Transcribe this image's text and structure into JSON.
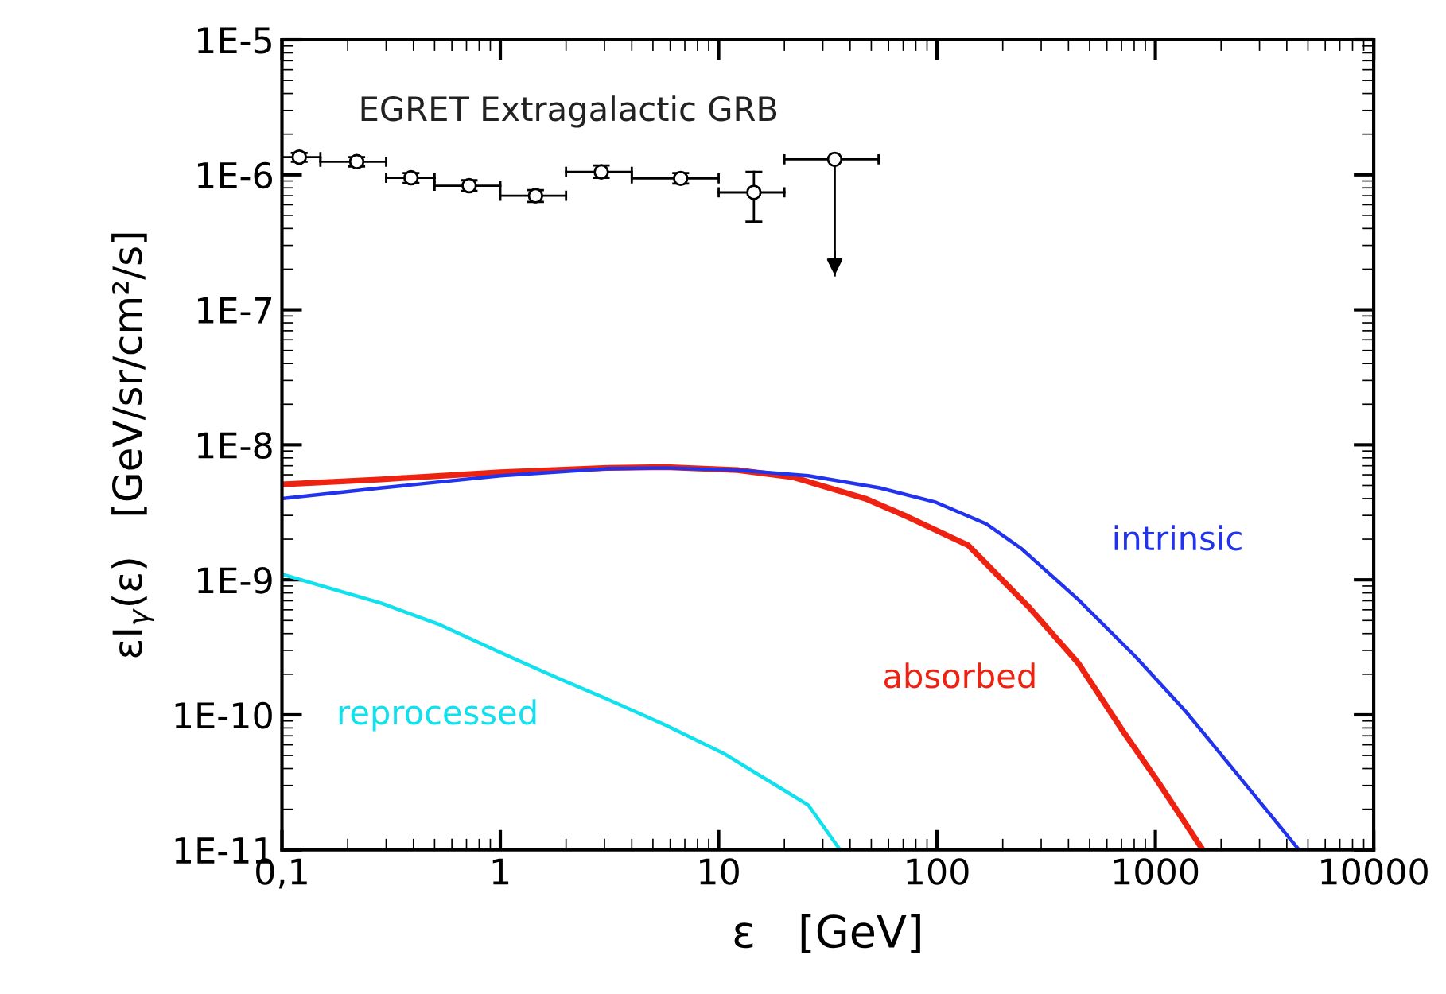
{
  "chart_data": {
    "type": "line",
    "xlabel": "ε   [GeV]",
    "ylabel": "εI$_{γ}$(ε)   [GeV/sr/cm²/s]",
    "log": "xy",
    "grid": false,
    "legend": false,
    "marker": "none",
    "line_style": "solid",
    "xlim": [
      0.1,
      10000
    ],
    "xticks": [
      {
        "value": 0.1,
        "label": "0,1"
      },
      1,
      10,
      100,
      1000,
      10000
    ],
    "ylim": [
      1e-11,
      1e-05
    ],
    "yticks": [
      {
        "value": 1e-11,
        "label": "1E-11"
      },
      {
        "value": 1e-10,
        "label": "1E-10"
      },
      {
        "value": 1e-09,
        "label": "1E-9"
      },
      {
        "value": 1e-08,
        "label": "1E-8"
      },
      {
        "value": 1e-07,
        "label": "1E-7"
      },
      {
        "value": 1e-06,
        "label": "1E-6"
      },
      {
        "value": 1e-05,
        "label": "1E-5"
      }
    ],
    "annotations": [
      "EGRET Extragalactic GRB"
    ],
    "series": [
      {
        "type": "scatter",
        "marker": "circle",
        "color": "#000000",
        "x": [
          0.12,
          0.22,
          0.39,
          0.72,
          1.45,
          2.9,
          6.7,
          14.5,
          34
        ],
        "values": [
          1.35e-06,
          1.25e-06,
          9.5e-07,
          8.3e-07,
          7e-07,
          1.05e-06,
          9.4e-07,
          7.4e-07,
          1.3e-06
        ],
        "errors": [
          [
            1.25e-06,
            1.45e-06
          ],
          [
            1.15e-06,
            1.35e-06
          ],
          [
            8.7e-07,
            1.03e-06
          ],
          [
            7.6e-07,
            9.1e-07
          ],
          [
            6.3e-07,
            7.7e-07
          ],
          [
            9.5e-07,
            1.17e-06
          ],
          [
            8.6e-07,
            1.03e-06
          ],
          [
            4.5e-07,
            1.05e-06
          ],
          [
            1.8e-07,
            1.3e-06
          ]
        ],
        "xerrors": [
          [
            0.1,
            0.15
          ],
          [
            0.15,
            0.3
          ],
          [
            0.3,
            0.5
          ],
          [
            0.5,
            1
          ],
          [
            1,
            2
          ],
          [
            2,
            4
          ],
          [
            4,
            10
          ],
          [
            10,
            20
          ],
          [
            20,
            54
          ]
        ]
      },
      {
        "name": "absorbed",
        "color": "#ee2211",
        "x": [
          0.1,
          0.286,
          1,
          3.15,
          5.7,
          12.2,
          22,
          46.9,
          73,
          139,
          263,
          445,
          698,
          1015,
          1650
        ],
        "values": [
          5.1e-09,
          5.55e-09,
          6.27e-09,
          6.75e-09,
          6.84e-09,
          6.5e-09,
          5.75e-09,
          4e-09,
          2.94e-09,
          1.8e-09,
          6.3e-10,
          2.4e-10,
          7.9e-11,
          3.3e-11,
          1e-11
        ]
      },
      {
        "name": "intrinsic",
        "color": "#2233ee",
        "x": [
          0.1,
          0.286,
          1,
          3.15,
          5.7,
          12.2,
          25.7,
          54.5,
          99,
          168,
          244,
          445,
          811,
          1370,
          2320,
          4550
        ],
        "values": [
          4e-09,
          4.8e-09,
          5.9e-09,
          6.67e-09,
          6.75e-09,
          6.5e-09,
          5.9e-09,
          4.8e-09,
          3.75e-09,
          2.6e-09,
          1.7e-09,
          7.1e-10,
          2.7e-10,
          1.07e-10,
          3.8e-11,
          1e-11
        ]
      },
      {
        "name": "reprocessed",
        "color": "#11e0ee",
        "x": [
          0.1,
          0.157,
          0.286,
          0.52,
          1,
          1.86,
          3.15,
          5.7,
          10.5,
          19,
          25.7,
          36
        ],
        "values": [
          1.1e-09,
          8.9e-10,
          6.7e-10,
          4.7e-10,
          2.9e-10,
          1.85e-10,
          1.29e-10,
          8.4e-11,
          5.2e-11,
          2.9e-11,
          2.15e-11,
          1e-11
        ]
      }
    ]
  }
}
